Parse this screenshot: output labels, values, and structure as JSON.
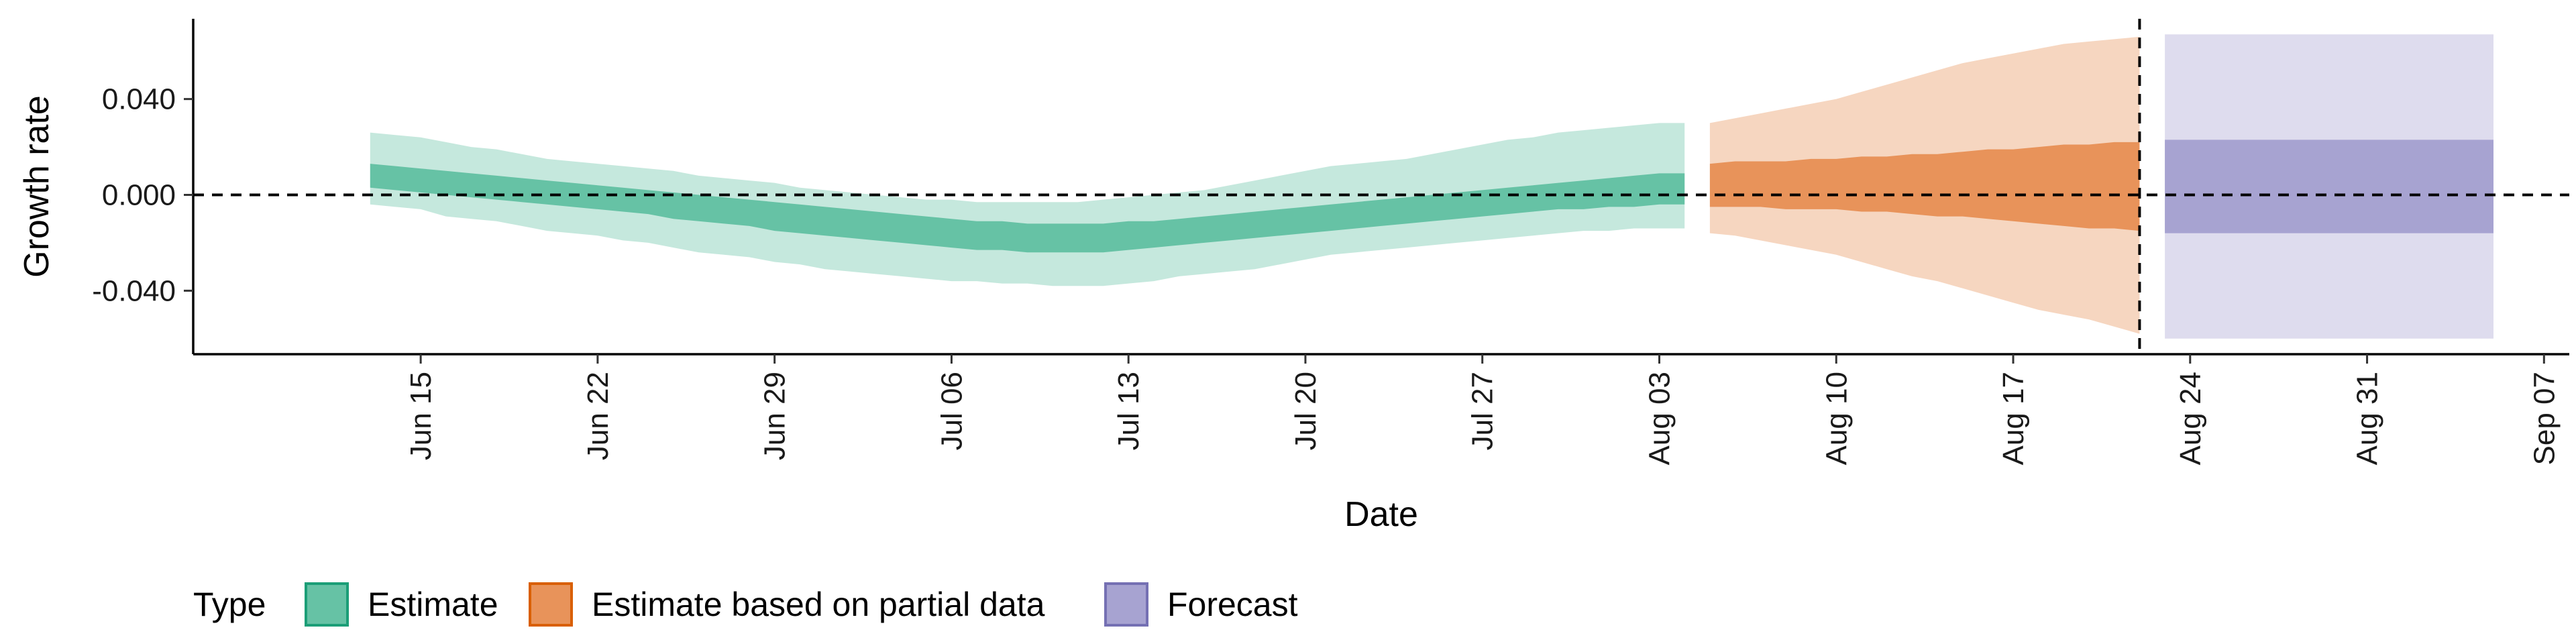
{
  "chart_data": {
    "type": "area",
    "xlabel": "Date",
    "ylabel": "Growth rate",
    "x_range": [
      "2020-06-06",
      "2020-09-08"
    ],
    "ylim": [
      -0.0665,
      0.0735
    ],
    "y_ticks": [
      -0.04,
      0.0,
      0.04
    ],
    "y_tick_labels": [
      "-0.040",
      "0.000",
      "0.040"
    ],
    "x_ticks": [
      "2020-06-15",
      "2020-06-22",
      "2020-06-29",
      "2020-07-06",
      "2020-07-13",
      "2020-07-20",
      "2020-07-27",
      "2020-08-03",
      "2020-08-10",
      "2020-08-17",
      "2020-08-24",
      "2020-08-31",
      "2020-09-07"
    ],
    "x_tick_labels": [
      "Jun 15",
      "Jun 22",
      "Jun 29",
      "Jul 06",
      "Jul 13",
      "Jul 20",
      "Jul 27",
      "Aug 03",
      "Aug 10",
      "Aug 17",
      "Aug 24",
      "Aug 31",
      "Sep 07"
    ],
    "reference_lines": {
      "horizontal_y": 0.0,
      "vertical_x": "2020-08-22"
    },
    "grid": false,
    "legend": {
      "title": "Type",
      "position": "bottom-left",
      "entries": [
        {
          "label": "Estimate",
          "fill": "#66c2a5",
          "stroke": "#1b9e77"
        },
        {
          "label": "Estimate based on partial data",
          "fill": "#e8935a",
          "stroke": "#d95f02"
        },
        {
          "label": "Forecast",
          "fill": "#a7a3d1",
          "stroke": "#7570b3"
        }
      ]
    },
    "series": [
      {
        "name": "Estimate",
        "color": "#1b9e77",
        "x": [
          "2020-06-13",
          "2020-06-14",
          "2020-06-15",
          "2020-06-16",
          "2020-06-17",
          "2020-06-18",
          "2020-06-19",
          "2020-06-20",
          "2020-06-21",
          "2020-06-22",
          "2020-06-23",
          "2020-06-24",
          "2020-06-25",
          "2020-06-26",
          "2020-06-27",
          "2020-06-28",
          "2020-06-29",
          "2020-06-30",
          "2020-07-01",
          "2020-07-02",
          "2020-07-03",
          "2020-07-04",
          "2020-07-05",
          "2020-07-06",
          "2020-07-07",
          "2020-07-08",
          "2020-07-09",
          "2020-07-10",
          "2020-07-11",
          "2020-07-12",
          "2020-07-13",
          "2020-07-14",
          "2020-07-15",
          "2020-07-16",
          "2020-07-17",
          "2020-07-18",
          "2020-07-19",
          "2020-07-20",
          "2020-07-21",
          "2020-07-22",
          "2020-07-23",
          "2020-07-24",
          "2020-07-25",
          "2020-07-26",
          "2020-07-27",
          "2020-07-28",
          "2020-07-29",
          "2020-07-30",
          "2020-07-31",
          "2020-08-01",
          "2020-08-02",
          "2020-08-03",
          "2020-08-04"
        ],
        "lower_90": [
          -0.004,
          -0.005,
          -0.006,
          -0.009,
          -0.01,
          -0.011,
          -0.013,
          -0.015,
          -0.016,
          -0.017,
          -0.019,
          -0.02,
          -0.022,
          -0.024,
          -0.025,
          -0.026,
          -0.028,
          -0.029,
          -0.031,
          -0.032,
          -0.033,
          -0.034,
          -0.035,
          -0.036,
          -0.036,
          -0.037,
          -0.037,
          -0.038,
          -0.038,
          -0.038,
          -0.037,
          -0.036,
          -0.034,
          -0.033,
          -0.032,
          -0.031,
          -0.029,
          -0.027,
          -0.025,
          -0.024,
          -0.023,
          -0.022,
          -0.021,
          -0.02,
          -0.019,
          -0.018,
          -0.017,
          -0.016,
          -0.015,
          -0.015,
          -0.014,
          -0.014,
          -0.014
        ],
        "lower_50": [
          0.003,
          0.002,
          0.001,
          0.0,
          -0.001,
          -0.002,
          -0.003,
          -0.004,
          -0.005,
          -0.006,
          -0.007,
          -0.008,
          -0.01,
          -0.011,
          -0.012,
          -0.013,
          -0.015,
          -0.016,
          -0.017,
          -0.018,
          -0.019,
          -0.02,
          -0.021,
          -0.022,
          -0.023,
          -0.023,
          -0.024,
          -0.024,
          -0.024,
          -0.024,
          -0.023,
          -0.022,
          -0.021,
          -0.02,
          -0.019,
          -0.018,
          -0.017,
          -0.016,
          -0.015,
          -0.014,
          -0.013,
          -0.012,
          -0.011,
          -0.01,
          -0.009,
          -0.008,
          -0.007,
          -0.006,
          -0.006,
          -0.005,
          -0.005,
          -0.004,
          -0.004
        ],
        "upper_50": [
          0.013,
          0.012,
          0.011,
          0.01,
          0.009,
          0.008,
          0.007,
          0.006,
          0.005,
          0.004,
          0.003,
          0.002,
          0.001,
          0.0,
          -0.001,
          -0.002,
          -0.003,
          -0.004,
          -0.005,
          -0.006,
          -0.007,
          -0.008,
          -0.009,
          -0.01,
          -0.011,
          -0.011,
          -0.012,
          -0.012,
          -0.012,
          -0.012,
          -0.011,
          -0.011,
          -0.01,
          -0.009,
          -0.008,
          -0.007,
          -0.006,
          -0.005,
          -0.004,
          -0.003,
          -0.002,
          -0.001,
          0.0,
          0.001,
          0.002,
          0.003,
          0.004,
          0.005,
          0.006,
          0.007,
          0.008,
          0.009,
          0.009
        ],
        "upper_90": [
          0.026,
          0.025,
          0.024,
          0.022,
          0.02,
          0.019,
          0.017,
          0.015,
          0.014,
          0.013,
          0.012,
          0.011,
          0.01,
          0.008,
          0.007,
          0.006,
          0.005,
          0.003,
          0.002,
          0.001,
          0.0,
          -0.001,
          -0.002,
          -0.002,
          -0.003,
          -0.003,
          -0.003,
          -0.003,
          -0.003,
          -0.002,
          -0.001,
          0.0,
          0.001,
          0.002,
          0.004,
          0.006,
          0.008,
          0.01,
          0.012,
          0.013,
          0.014,
          0.015,
          0.017,
          0.019,
          0.021,
          0.023,
          0.024,
          0.026,
          0.027,
          0.028,
          0.029,
          0.03,
          0.03
        ]
      },
      {
        "name": "Estimate based on partial data",
        "color": "#d95f02",
        "x": [
          "2020-08-05",
          "2020-08-06",
          "2020-08-07",
          "2020-08-08",
          "2020-08-09",
          "2020-08-10",
          "2020-08-11",
          "2020-08-12",
          "2020-08-13",
          "2020-08-14",
          "2020-08-15",
          "2020-08-16",
          "2020-08-17",
          "2020-08-18",
          "2020-08-19",
          "2020-08-20",
          "2020-08-21",
          "2020-08-22"
        ],
        "lower_90": [
          -0.016,
          -0.017,
          -0.019,
          -0.021,
          -0.023,
          -0.025,
          -0.028,
          -0.031,
          -0.034,
          -0.036,
          -0.039,
          -0.042,
          -0.045,
          -0.048,
          -0.05,
          -0.052,
          -0.055,
          -0.058
        ],
        "lower_50": [
          -0.005,
          -0.005,
          -0.005,
          -0.006,
          -0.006,
          -0.006,
          -0.007,
          -0.007,
          -0.008,
          -0.009,
          -0.009,
          -0.01,
          -0.011,
          -0.012,
          -0.013,
          -0.014,
          -0.014,
          -0.015
        ],
        "upper_50": [
          0.013,
          0.014,
          0.014,
          0.014,
          0.015,
          0.015,
          0.016,
          0.016,
          0.017,
          0.017,
          0.018,
          0.019,
          0.019,
          0.02,
          0.021,
          0.021,
          0.022,
          0.022
        ],
        "upper_90": [
          0.03,
          0.032,
          0.034,
          0.036,
          0.038,
          0.04,
          0.043,
          0.046,
          0.049,
          0.052,
          0.055,
          0.057,
          0.059,
          0.061,
          0.063,
          0.064,
          0.065,
          0.066
        ]
      },
      {
        "name": "Forecast",
        "color": "#7570b3",
        "x": [
          "2020-08-23",
          "2020-09-05"
        ],
        "lower_90": [
          -0.06,
          -0.06
        ],
        "lower_50": [
          -0.016,
          -0.016
        ],
        "upper_50": [
          0.023,
          0.023
        ],
        "upper_90": [
          0.067,
          0.067
        ]
      }
    ]
  }
}
